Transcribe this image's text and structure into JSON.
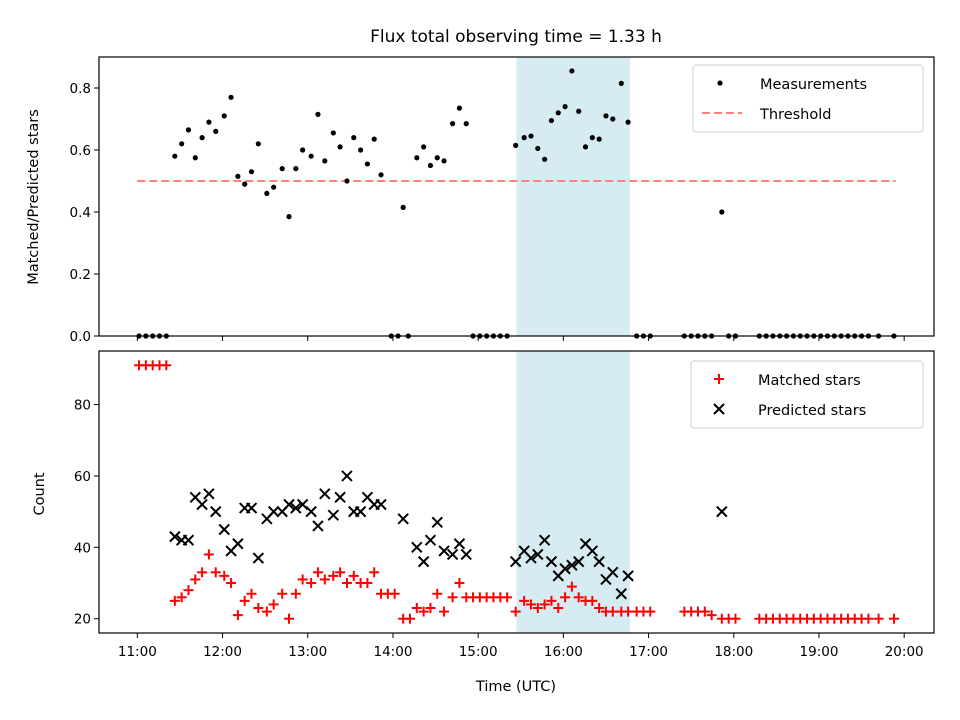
{
  "chart_data": [
    {
      "type": "scatter",
      "title": "Flux total observing time = 1.33 h",
      "ylabel": "Matched/Predicted stars",
      "xlabel": "",
      "ylim": [
        0,
        0.9
      ],
      "yticks": [
        0.0,
        0.2,
        0.4,
        0.6,
        0.8
      ],
      "ytick_labels": [
        "0.0",
        "0.2",
        "0.4",
        "0.6",
        "0.8"
      ],
      "xlim": [
        10.55,
        20.35
      ],
      "xticks": [
        11,
        12,
        13,
        14,
        15,
        16,
        17,
        18,
        19,
        20
      ],
      "grid": false,
      "legend": {
        "placement": "top-right",
        "entries": [
          "Measurements",
          "Threshold"
        ]
      },
      "highlight_span": {
        "x0": 15.45,
        "x1": 16.78,
        "color": "#add8e6"
      },
      "threshold": {
        "name": "Threshold",
        "y": 0.5,
        "x0": 11.0,
        "x1": 19.9,
        "color": "#ff7f7f"
      },
      "series": [
        {
          "name": "Measurements",
          "color": "#000000",
          "points": [
            [
              11.02,
              0.0
            ],
            [
              11.1,
              0.0
            ],
            [
              11.18,
              0.0
            ],
            [
              11.26,
              0.0
            ],
            [
              11.34,
              0.0
            ],
            [
              11.44,
              0.58
            ],
            [
              11.52,
              0.62
            ],
            [
              11.6,
              0.665
            ],
            [
              11.68,
              0.575
            ],
            [
              11.76,
              0.64
            ],
            [
              11.84,
              0.69
            ],
            [
              11.92,
              0.66
            ],
            [
              12.02,
              0.71
            ],
            [
              12.1,
              0.77
            ],
            [
              12.18,
              0.515
            ],
            [
              12.26,
              0.49
            ],
            [
              12.34,
              0.53
            ],
            [
              12.42,
              0.62
            ],
            [
              12.52,
              0.46
            ],
            [
              12.6,
              0.48
            ],
            [
              12.7,
              0.54
            ],
            [
              12.78,
              0.385
            ],
            [
              12.86,
              0.54
            ],
            [
              12.94,
              0.6
            ],
            [
              13.04,
              0.58
            ],
            [
              13.12,
              0.715
            ],
            [
              13.2,
              0.565
            ],
            [
              13.3,
              0.655
            ],
            [
              13.38,
              0.61
            ],
            [
              13.46,
              0.5
            ],
            [
              13.54,
              0.64
            ],
            [
              13.62,
              0.6
            ],
            [
              13.7,
              0.555
            ],
            [
              13.78,
              0.635
            ],
            [
              13.86,
              0.52
            ],
            [
              13.98,
              0.0
            ],
            [
              14.06,
              0.0
            ],
            [
              14.12,
              0.415
            ],
            [
              14.18,
              0.0
            ],
            [
              14.28,
              0.575
            ],
            [
              14.36,
              0.61
            ],
            [
              14.44,
              0.55
            ],
            [
              14.52,
              0.575
            ],
            [
              14.6,
              0.565
            ],
            [
              14.7,
              0.685
            ],
            [
              14.78,
              0.735
            ],
            [
              14.86,
              0.685
            ],
            [
              14.94,
              0.0
            ],
            [
              15.02,
              0.0
            ],
            [
              15.1,
              0.0
            ],
            [
              15.18,
              0.0
            ],
            [
              15.26,
              0.0
            ],
            [
              15.34,
              0.0
            ],
            [
              15.44,
              0.615
            ],
            [
              15.54,
              0.64
            ],
            [
              15.62,
              0.645
            ],
            [
              15.7,
              0.605
            ],
            [
              15.78,
              0.57
            ],
            [
              15.86,
              0.695
            ],
            [
              15.94,
              0.72
            ],
            [
              16.02,
              0.74
            ],
            [
              16.1,
              0.855
            ],
            [
              16.18,
              0.725
            ],
            [
              16.26,
              0.61
            ],
            [
              16.34,
              0.64
            ],
            [
              16.42,
              0.635
            ],
            [
              16.5,
              0.71
            ],
            [
              16.58,
              0.7
            ],
            [
              16.68,
              0.815
            ],
            [
              16.76,
              0.69
            ],
            [
              16.86,
              0.0
            ],
            [
              16.94,
              0.0
            ],
            [
              17.02,
              0.0
            ],
            [
              17.42,
              0.0
            ],
            [
              17.5,
              0.0
            ],
            [
              17.58,
              0.0
            ],
            [
              17.66,
              0.0
            ],
            [
              17.74,
              0.0
            ],
            [
              17.86,
              0.4
            ],
            [
              17.94,
              0.0
            ],
            [
              18.02,
              0.0
            ],
            [
              18.3,
              0.0
            ],
            [
              18.38,
              0.0
            ],
            [
              18.46,
              0.0
            ],
            [
              18.54,
              0.0
            ],
            [
              18.62,
              0.0
            ],
            [
              18.7,
              0.0
            ],
            [
              18.78,
              0.0
            ],
            [
              18.86,
              0.0
            ],
            [
              18.94,
              0.0
            ],
            [
              19.02,
              0.0
            ],
            [
              19.1,
              0.0
            ],
            [
              19.18,
              0.0
            ],
            [
              19.26,
              0.0
            ],
            [
              19.34,
              0.0
            ],
            [
              19.42,
              0.0
            ],
            [
              19.5,
              0.0
            ],
            [
              19.58,
              0.0
            ],
            [
              19.7,
              0.0
            ],
            [
              19.88,
              0.0
            ]
          ]
        }
      ]
    },
    {
      "type": "scatter",
      "title": "",
      "ylabel": "Count",
      "xlabel": "Time (UTC)",
      "ylim": [
        16.0,
        95.0
      ],
      "yticks": [
        20,
        40,
        60,
        80
      ],
      "ytick_labels": [
        "20",
        "40",
        "60",
        "80"
      ],
      "xlim": [
        10.55,
        20.35
      ],
      "xticks": [
        11,
        12,
        13,
        14,
        15,
        16,
        17,
        18,
        19,
        20
      ],
      "xtick_labels": [
        "11:00",
        "12:00",
        "13:00",
        "14:00",
        "15:00",
        "16:00",
        "17:00",
        "18:00",
        "19:00",
        "20:00"
      ],
      "grid": false,
      "legend": {
        "placement": "top-right",
        "entries": [
          "Matched stars",
          "Predicted stars"
        ]
      },
      "highlight_span": {
        "x0": 15.45,
        "x1": 16.78,
        "color": "#add8e6"
      },
      "series": [
        {
          "name": "Matched stars",
          "color": "#ff0000",
          "marker": "+",
          "points": [
            [
              11.02,
              91
            ],
            [
              11.1,
              91
            ],
            [
              11.18,
              91
            ],
            [
              11.26,
              91
            ],
            [
              11.34,
              91
            ],
            [
              11.44,
              25
            ],
            [
              11.52,
              26
            ],
            [
              11.6,
              28
            ],
            [
              11.68,
              31
            ],
            [
              11.76,
              33
            ],
            [
              11.84,
              38
            ],
            [
              11.92,
              33
            ],
            [
              12.02,
              32
            ],
            [
              12.1,
              30
            ],
            [
              12.18,
              21
            ],
            [
              12.26,
              25
            ],
            [
              12.34,
              27
            ],
            [
              12.42,
              23
            ],
            [
              12.52,
              22
            ],
            [
              12.6,
              24
            ],
            [
              12.7,
              27
            ],
            [
              12.78,
              20
            ],
            [
              12.86,
              27
            ],
            [
              12.94,
              31
            ],
            [
              13.04,
              30
            ],
            [
              13.12,
              33
            ],
            [
              13.2,
              31
            ],
            [
              13.3,
              32
            ],
            [
              13.38,
              33
            ],
            [
              13.46,
              30
            ],
            [
              13.54,
              32
            ],
            [
              13.62,
              30
            ],
            [
              13.7,
              30
            ],
            [
              13.78,
              33
            ],
            [
              13.86,
              27
            ],
            [
              13.94,
              27
            ],
            [
              14.02,
              27
            ],
            [
              14.12,
              20
            ],
            [
              14.2,
              20
            ],
            [
              14.28,
              23
            ],
            [
              14.36,
              22
            ],
            [
              14.44,
              23
            ],
            [
              14.52,
              27
            ],
            [
              14.6,
              22
            ],
            [
              14.7,
              26
            ],
            [
              14.78,
              30
            ],
            [
              14.86,
              26
            ],
            [
              14.94,
              26
            ],
            [
              15.02,
              26
            ],
            [
              15.1,
              26
            ],
            [
              15.18,
              26
            ],
            [
              15.26,
              26
            ],
            [
              15.34,
              26
            ],
            [
              15.44,
              22
            ],
            [
              15.54,
              25
            ],
            [
              15.62,
              24
            ],
            [
              15.7,
              23
            ],
            [
              15.78,
              24
            ],
            [
              15.86,
              25
            ],
            [
              15.94,
              23
            ],
            [
              16.02,
              26
            ],
            [
              16.1,
              29
            ],
            [
              16.18,
              26
            ],
            [
              16.26,
              25
            ],
            [
              16.34,
              25
            ],
            [
              16.42,
              23
            ],
            [
              16.5,
              22
            ],
            [
              16.58,
              22
            ],
            [
              16.68,
              22
            ],
            [
              16.76,
              22
            ],
            [
              16.86,
              22
            ],
            [
              16.94,
              22
            ],
            [
              17.02,
              22
            ],
            [
              17.42,
              22
            ],
            [
              17.5,
              22
            ],
            [
              17.58,
              22
            ],
            [
              17.66,
              22
            ],
            [
              17.74,
              21
            ],
            [
              17.86,
              20
            ],
            [
              17.94,
              20
            ],
            [
              18.02,
              20
            ],
            [
              18.3,
              20
            ],
            [
              18.38,
              20
            ],
            [
              18.46,
              20
            ],
            [
              18.54,
              20
            ],
            [
              18.62,
              20
            ],
            [
              18.7,
              20
            ],
            [
              18.78,
              20
            ],
            [
              18.86,
              20
            ],
            [
              18.94,
              20
            ],
            [
              19.02,
              20
            ],
            [
              19.1,
              20
            ],
            [
              19.18,
              20
            ],
            [
              19.26,
              20
            ],
            [
              19.34,
              20
            ],
            [
              19.42,
              20
            ],
            [
              19.5,
              20
            ],
            [
              19.58,
              20
            ],
            [
              19.7,
              20
            ],
            [
              19.88,
              20
            ]
          ]
        },
        {
          "name": "Predicted stars",
          "color": "#000000",
          "marker": "x",
          "points": [
            [
              11.44,
              43
            ],
            [
              11.52,
              42
            ],
            [
              11.6,
              42
            ],
            [
              11.68,
              54
            ],
            [
              11.76,
              52
            ],
            [
              11.84,
              55
            ],
            [
              11.92,
              50
            ],
            [
              12.02,
              45
            ],
            [
              12.1,
              39
            ],
            [
              12.18,
              41
            ],
            [
              12.26,
              51
            ],
            [
              12.34,
              51
            ],
            [
              12.42,
              37
            ],
            [
              12.52,
              48
            ],
            [
              12.6,
              50
            ],
            [
              12.7,
              50
            ],
            [
              12.78,
              52
            ],
            [
              12.86,
              51
            ],
            [
              12.94,
              52
            ],
            [
              13.04,
              50
            ],
            [
              13.12,
              46
            ],
            [
              13.2,
              55
            ],
            [
              13.3,
              49
            ],
            [
              13.38,
              54
            ],
            [
              13.46,
              60
            ],
            [
              13.54,
              50
            ],
            [
              13.62,
              50
            ],
            [
              13.7,
              54
            ],
            [
              13.78,
              52
            ],
            [
              13.86,
              52
            ],
            [
              14.12,
              48
            ],
            [
              14.28,
              40
            ],
            [
              14.36,
              36
            ],
            [
              14.44,
              42
            ],
            [
              14.52,
              47
            ],
            [
              14.6,
              39
            ],
            [
              14.7,
              38
            ],
            [
              14.78,
              41
            ],
            [
              14.86,
              38
            ],
            [
              15.44,
              36
            ],
            [
              15.54,
              39
            ],
            [
              15.62,
              37
            ],
            [
              15.7,
              38
            ],
            [
              15.78,
              42
            ],
            [
              15.86,
              36
            ],
            [
              15.94,
              32
            ],
            [
              16.02,
              34
            ],
            [
              16.1,
              35
            ],
            [
              16.18,
              36
            ],
            [
              16.26,
              41
            ],
            [
              16.34,
              39
            ],
            [
              16.42,
              36
            ],
            [
              16.5,
              31
            ],
            [
              16.58,
              33
            ],
            [
              16.68,
              27
            ],
            [
              16.76,
              32
            ],
            [
              17.86,
              50
            ]
          ]
        }
      ]
    }
  ]
}
